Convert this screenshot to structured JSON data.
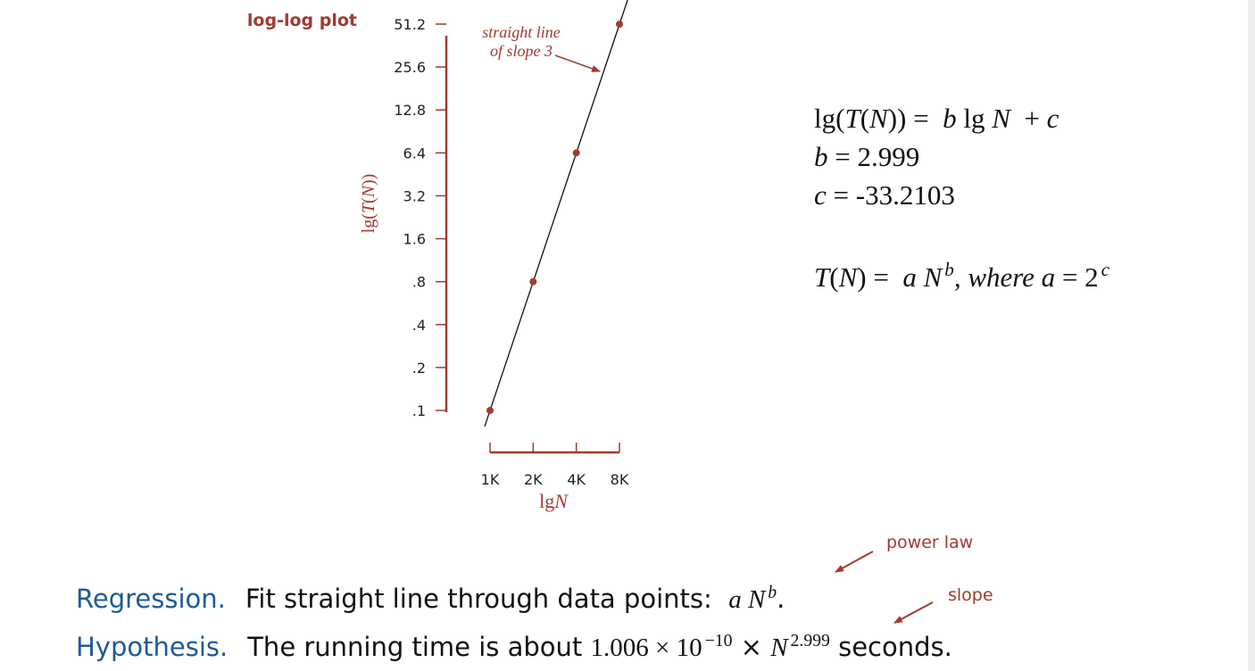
{
  "chart_data": {
    "type": "scatter",
    "title": "log-log plot",
    "x_label": [
      {
        "t": "lg",
        "s": "r"
      },
      {
        "t": "N",
        "s": "i"
      }
    ],
    "y_label": [
      {
        "t": "lg(",
        "s": "r"
      },
      {
        "t": "T",
        "s": "i"
      },
      {
        "t": "(",
        "s": "r"
      },
      {
        "t": "N",
        "s": "i"
      },
      {
        "t": "))",
        "s": "r"
      }
    ],
    "log_x": true,
    "log_y": true,
    "color": "#a33a2e",
    "x": [
      1000,
      2000,
      4000,
      8000
    ],
    "values": [
      0.1,
      0.8,
      6.4,
      51.1
    ],
    "xlim": [
      1000,
      8000
    ],
    "ylim": [
      0.1,
      51.2
    ],
    "xticks": [
      {
        "value": 1000,
        "label": "1K"
      },
      {
        "value": 2000,
        "label": "2K"
      },
      {
        "value": 4000,
        "label": "4K"
      },
      {
        "value": 8000,
        "label": "8K"
      }
    ],
    "yticks": [
      {
        "value": 0.1,
        "label": ".1"
      },
      {
        "value": 0.2,
        "label": ".2"
      },
      {
        "value": 0.4,
        "label": ".4"
      },
      {
        "value": 0.8,
        "label": ".8"
      },
      1.6,
      3.2,
      6.4,
      12.8,
      25.6,
      51.2
    ],
    "fit": {
      "b": 2.999,
      "c": -33.2103,
      "b_prefix": [
        {
          "t": "b",
          "s": "i"
        },
        {
          "t": " = ",
          "s": "r"
        }
      ],
      "c_prefix": [
        {
          "t": "c",
          "s": "i"
        },
        {
          "t": " = ",
          "s": "r"
        }
      ]
    },
    "fit_note": [
      "straight line",
      "of slope 3"
    ],
    "equations": [
      [
        {
          "t": "lg(",
          "s": "r"
        },
        {
          "t": "T",
          "s": "i"
        },
        {
          "t": "(",
          "s": "r"
        },
        {
          "t": "N",
          "s": "i"
        },
        {
          "t": ")) =  ",
          "s": "r"
        },
        {
          "t": "b",
          "s": "i"
        },
        {
          "t": " lg ",
          "s": "r"
        },
        {
          "t": "N",
          "s": "i"
        },
        {
          "t": "  + ",
          "s": "r"
        },
        {
          "t": "c",
          "s": "i"
        }
      ],
      [
        {
          "t": "T",
          "s": "i"
        },
        {
          "t": "(",
          "s": "r"
        },
        {
          "t": "N",
          "s": "i"
        },
        {
          "t": ") =  ",
          "s": "r"
        },
        {
          "t": "a",
          "s": "i"
        },
        {
          "t": " ",
          "s": "r"
        },
        {
          "t": "N",
          "s": "i"
        },
        {
          "t": "b",
          "s": "supi"
        },
        {
          "t": ", where ",
          "s": "i"
        },
        {
          "t": "a",
          "s": "i"
        },
        {
          "t": " = 2",
          "s": "r"
        },
        {
          "t": "c",
          "s": "supi"
        }
      ]
    ],
    "notes": [
      [
        {
          "t": "Regression.",
          "s": "h"
        },
        {
          "t": "Fit straight line through data points:  ",
          "s": "s"
        },
        {
          "t": "a",
          "s": "i"
        },
        {
          "t": " ",
          "s": "r"
        },
        {
          "t": "N",
          "s": "i"
        },
        {
          "t": "b",
          "s": "supi"
        },
        {
          "t": ".",
          "s": "s"
        }
      ],
      [
        {
          "t": "Hypothesis.",
          "s": "h"
        },
        {
          "t": "The running time is about ",
          "s": "s"
        },
        {
          "t": "1.006 × 10",
          "s": "r"
        },
        {
          "t": "−10",
          "s": "sup"
        },
        {
          "t": " × ",
          "s": "s"
        },
        {
          "t": "N",
          "s": "i"
        },
        {
          "t": "2.999",
          "s": "sup"
        },
        {
          "t": " seconds.",
          "s": "s"
        }
      ]
    ],
    "callouts": [
      "power law",
      "slope"
    ]
  }
}
